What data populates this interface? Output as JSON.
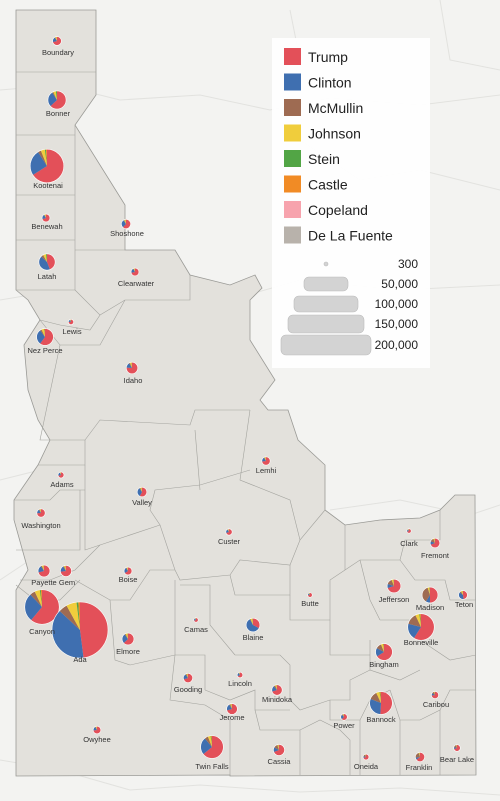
{
  "legend": {
    "candidates": [
      {
        "name": "Trump",
        "color": "#e35059"
      },
      {
        "name": "Clinton",
        "color": "#3f6fb0"
      },
      {
        "name": "McMullin",
        "color": "#9e6b52"
      },
      {
        "name": "Johnson",
        "color": "#f0cd3c"
      },
      {
        "name": "Stein",
        "color": "#52a545"
      },
      {
        "name": "Castle",
        "color": "#f18b25"
      },
      {
        "name": "Copeland",
        "color": "#f7a3ad"
      },
      {
        "name": "De La Fuente",
        "color": "#b8b2ab"
      }
    ],
    "size_labels": [
      "300",
      "50,000",
      "100,000",
      "150,000",
      "200,000"
    ]
  },
  "counties": [
    {
      "name": "Boundary",
      "total": 5000,
      "shares": [
        0.71,
        0.2,
        0.02,
        0.05,
        0.01,
        0.01,
        0,
        0
      ]
    },
    {
      "name": "Bonner",
      "total": 21000,
      "shares": [
        0.63,
        0.28,
        0.02,
        0.05,
        0.02,
        0,
        0,
        0
      ]
    },
    {
      "name": "Kootenai",
      "total": 72000,
      "shares": [
        0.66,
        0.25,
        0.03,
        0.04,
        0.01,
        0.01,
        0,
        0
      ]
    },
    {
      "name": "Benewah",
      "total": 4000,
      "shares": [
        0.7,
        0.21,
        0.02,
        0.05,
        0.01,
        0.01,
        0,
        0
      ]
    },
    {
      "name": "Shoshone",
      "total": 5500,
      "shares": [
        0.62,
        0.29,
        0.02,
        0.05,
        0.01,
        0.01,
        0,
        0
      ]
    },
    {
      "name": "Latah",
      "total": 17000,
      "shares": [
        0.44,
        0.43,
        0.05,
        0.06,
        0.02,
        0,
        0,
        0
      ]
    },
    {
      "name": "Clearwater",
      "total": 4000,
      "shares": [
        0.72,
        0.2,
        0.02,
        0.04,
        0.01,
        0.01,
        0,
        0
      ]
    },
    {
      "name": "Lewis",
      "total": 1800,
      "shares": [
        0.76,
        0.17,
        0.02,
        0.04,
        0.01,
        0,
        0,
        0
      ]
    },
    {
      "name": "Nez Perce",
      "total": 18000,
      "shares": [
        0.6,
        0.3,
        0.03,
        0.05,
        0.01,
        0.01,
        0,
        0
      ]
    },
    {
      "name": "Idaho",
      "total": 8500,
      "shares": [
        0.76,
        0.15,
        0.03,
        0.04,
        0.01,
        0.01,
        0,
        0
      ]
    },
    {
      "name": "Adams",
      "total": 2300,
      "shares": [
        0.71,
        0.21,
        0.02,
        0.04,
        0.01,
        0.01,
        0,
        0
      ]
    },
    {
      "name": "Valley",
      "total": 6000,
      "shares": [
        0.58,
        0.33,
        0.03,
        0.04,
        0.01,
        0.01,
        0,
        0
      ]
    },
    {
      "name": "Washington",
      "total": 4500,
      "shares": [
        0.74,
        0.17,
        0.03,
        0.04,
        0.01,
        0.01,
        0,
        0
      ]
    },
    {
      "name": "Lemhi",
      "total": 4500,
      "shares": [
        0.73,
        0.18,
        0.03,
        0.04,
        0.01,
        0.01,
        0,
        0
      ]
    },
    {
      "name": "Custer",
      "total": 2600,
      "shares": [
        0.7,
        0.21,
        0.03,
        0.04,
        0.01,
        0.01,
        0,
        0
      ]
    },
    {
      "name": "Payette",
      "total": 9000,
      "shares": [
        0.71,
        0.2,
        0.03,
        0.04,
        0.01,
        0.01,
        0,
        0
      ]
    },
    {
      "name": "Gem",
      "total": 8000,
      "shares": [
        0.73,
        0.18,
        0.03,
        0.04,
        0.01,
        0.01,
        0,
        0
      ]
    },
    {
      "name": "Boise",
      "total": 4000,
      "shares": [
        0.66,
        0.25,
        0.03,
        0.04,
        0.01,
        0.01,
        0,
        0
      ]
    },
    {
      "name": "Canyon",
      "total": 76000,
      "shares": [
        0.61,
        0.27,
        0.05,
        0.05,
        0.01,
        0.01,
        0,
        0
      ]
    },
    {
      "name": "Ada",
      "total": 200000,
      "shares": [
        0.48,
        0.39,
        0.05,
        0.06,
        0.01,
        0.01,
        0,
        0
      ]
    },
    {
      "name": "Elmore",
      "total": 9000,
      "shares": [
        0.63,
        0.27,
        0.03,
        0.05,
        0.01,
        0.01,
        0,
        0
      ]
    },
    {
      "name": "Camas",
      "total": 600,
      "shares": [
        0.7,
        0.2,
        0.04,
        0.04,
        0.01,
        0.01,
        0,
        0
      ]
    },
    {
      "name": "Blaine",
      "total": 12000,
      "shares": [
        0.33,
        0.59,
        0.02,
        0.04,
        0.01,
        0.01,
        0,
        0
      ]
    },
    {
      "name": "Butte",
      "total": 1300,
      "shares": [
        0.74,
        0.13,
        0.07,
        0.04,
        0.01,
        0.01,
        0,
        0
      ]
    },
    {
      "name": "Clark",
      "total": 400,
      "shares": [
        0.7,
        0.15,
        0.08,
        0.04,
        0.02,
        0.01,
        0,
        0
      ]
    },
    {
      "name": "Fremont",
      "total": 6000,
      "shares": [
        0.69,
        0.12,
        0.13,
        0.04,
        0.01,
        0.01,
        0,
        0
      ]
    },
    {
      "name": "Jefferson",
      "total": 12000,
      "shares": [
        0.7,
        0.1,
        0.14,
        0.04,
        0.01,
        0.01,
        0,
        0
      ]
    },
    {
      "name": "Madison",
      "total": 16000,
      "shares": [
        0.5,
        0.09,
        0.36,
        0.03,
        0.01,
        0.01,
        0,
        0
      ]
    },
    {
      "name": "Teton",
      "total": 5000,
      "shares": [
        0.48,
        0.38,
        0.06,
        0.06,
        0.01,
        0.01,
        0,
        0
      ]
    },
    {
      "name": "Bonneville",
      "total": 45000,
      "shares": [
        0.59,
        0.2,
        0.14,
        0.05,
        0.01,
        0.01,
        0,
        0
      ]
    },
    {
      "name": "Bingham",
      "total": 18000,
      "shares": [
        0.66,
        0.17,
        0.11,
        0.04,
        0.01,
        0.01,
        0,
        0
      ]
    },
    {
      "name": "Lincoln",
      "total": 2000,
      "shares": [
        0.67,
        0.23,
        0.04,
        0.04,
        0.01,
        0.01,
        0,
        0
      ]
    },
    {
      "name": "Gooding",
      "total": 5500,
      "shares": [
        0.7,
        0.2,
        0.04,
        0.04,
        0.01,
        0.01,
        0,
        0
      ]
    },
    {
      "name": "Jerome",
      "total": 7500,
      "shares": [
        0.71,
        0.2,
        0.04,
        0.03,
        0.01,
        0.01,
        0,
        0
      ]
    },
    {
      "name": "Minidoka",
      "total": 7000,
      "shares": [
        0.7,
        0.19,
        0.05,
        0.04,
        0.01,
        0.01,
        0,
        0
      ]
    },
    {
      "name": "Twin Falls",
      "total": 33000,
      "shares": [
        0.64,
        0.25,
        0.05,
        0.04,
        0.01,
        0.01,
        0,
        0
      ]
    },
    {
      "name": "Cassia",
      "total": 8000,
      "shares": [
        0.69,
        0.14,
        0.12,
        0.03,
        0.01,
        0.01,
        0,
        0
      ]
    },
    {
      "name": "Power",
      "total": 2800,
      "shares": [
        0.63,
        0.25,
        0.06,
        0.04,
        0.01,
        0.01,
        0,
        0
      ]
    },
    {
      "name": "Bannock",
      "total": 33000,
      "shares": [
        0.51,
        0.3,
        0.12,
        0.05,
        0.01,
        0.01,
        0,
        0
      ]
    },
    {
      "name": "Caribou",
      "total": 3300,
      "shares": [
        0.72,
        0.12,
        0.11,
        0.03,
        0.01,
        0.01,
        0,
        0
      ]
    },
    {
      "name": "Oneida",
      "total": 2200,
      "shares": [
        0.7,
        0.1,
        0.15,
        0.03,
        0.01,
        0.01,
        0,
        0
      ]
    },
    {
      "name": "Franklin",
      "total": 5500,
      "shares": [
        0.65,
        0.08,
        0.22,
        0.03,
        0.01,
        0.01,
        0,
        0
      ]
    },
    {
      "name": "Bear Lake",
      "total": 2900,
      "shares": [
        0.7,
        0.1,
        0.15,
        0.03,
        0.01,
        0.01,
        0,
        0
      ]
    },
    {
      "name": "Owyhee",
      "total": 3800,
      "shares": [
        0.73,
        0.18,
        0.03,
        0.04,
        0.01,
        0.01,
        0,
        0
      ]
    }
  ]
}
